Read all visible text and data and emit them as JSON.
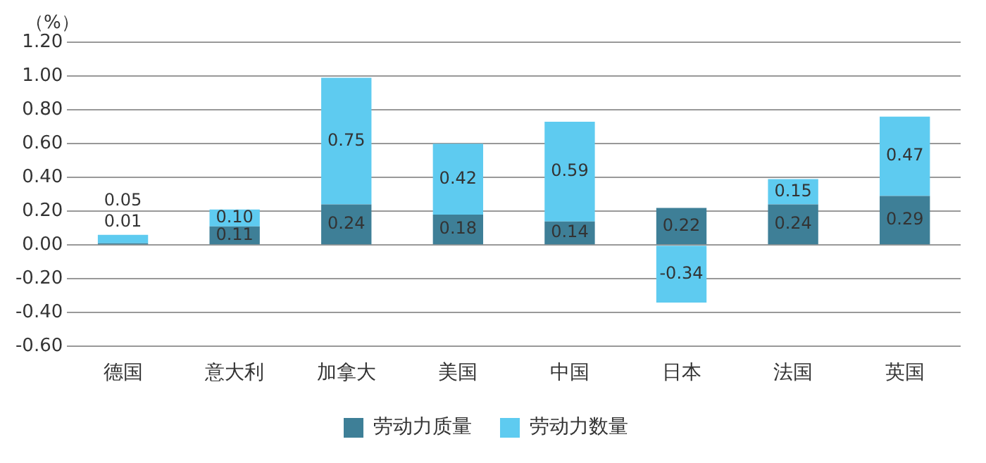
{
  "chart_data": {
    "type": "bar",
    "stacked": true,
    "ylabel": "（%）",
    "categories": [
      "德国",
      "意大利",
      "加拿大",
      "美国",
      "中国",
      "日本",
      "法国",
      "英国"
    ],
    "series": [
      {
        "name": "劳动力质量",
        "color": "#3e7f97",
        "values": [
          0.01,
          0.11,
          0.24,
          0.18,
          0.14,
          0.22,
          0.24,
          0.29
        ],
        "value_labels": [
          "0.01",
          "0.11",
          "0.24",
          "0.18",
          "0.14",
          "0.22",
          "0.24",
          "0.29"
        ]
      },
      {
        "name": "劳动力数量",
        "color": "#5ecbf0",
        "values": [
          0.05,
          0.1,
          0.75,
          0.42,
          0.59,
          -0.34,
          0.15,
          0.47
        ],
        "value_labels": [
          "0.05",
          "0.10",
          "0.75",
          "0.42",
          "0.59",
          "-0.34",
          "0.15",
          "0.47"
        ]
      }
    ],
    "ylim": [
      -0.6,
      1.2
    ],
    "yticks": [
      {
        "value": -0.6,
        "label": "-0.60"
      },
      {
        "value": -0.4,
        "label": "-0.40"
      },
      {
        "value": -0.2,
        "label": "-0.20"
      },
      {
        "value": 0,
        "label": "0.00"
      },
      {
        "value": 0.2,
        "label": "0.20"
      },
      {
        "value": 0.4,
        "label": "0.40"
      },
      {
        "value": 0.6,
        "label": "0.60"
      },
      {
        "value": 0.8,
        "label": "0.80"
      },
      {
        "value": 1.0,
        "label": "1.00"
      },
      {
        "value": 1.2,
        "label": "1.20"
      }
    ],
    "grid": "y",
    "legend": "bottom"
  }
}
